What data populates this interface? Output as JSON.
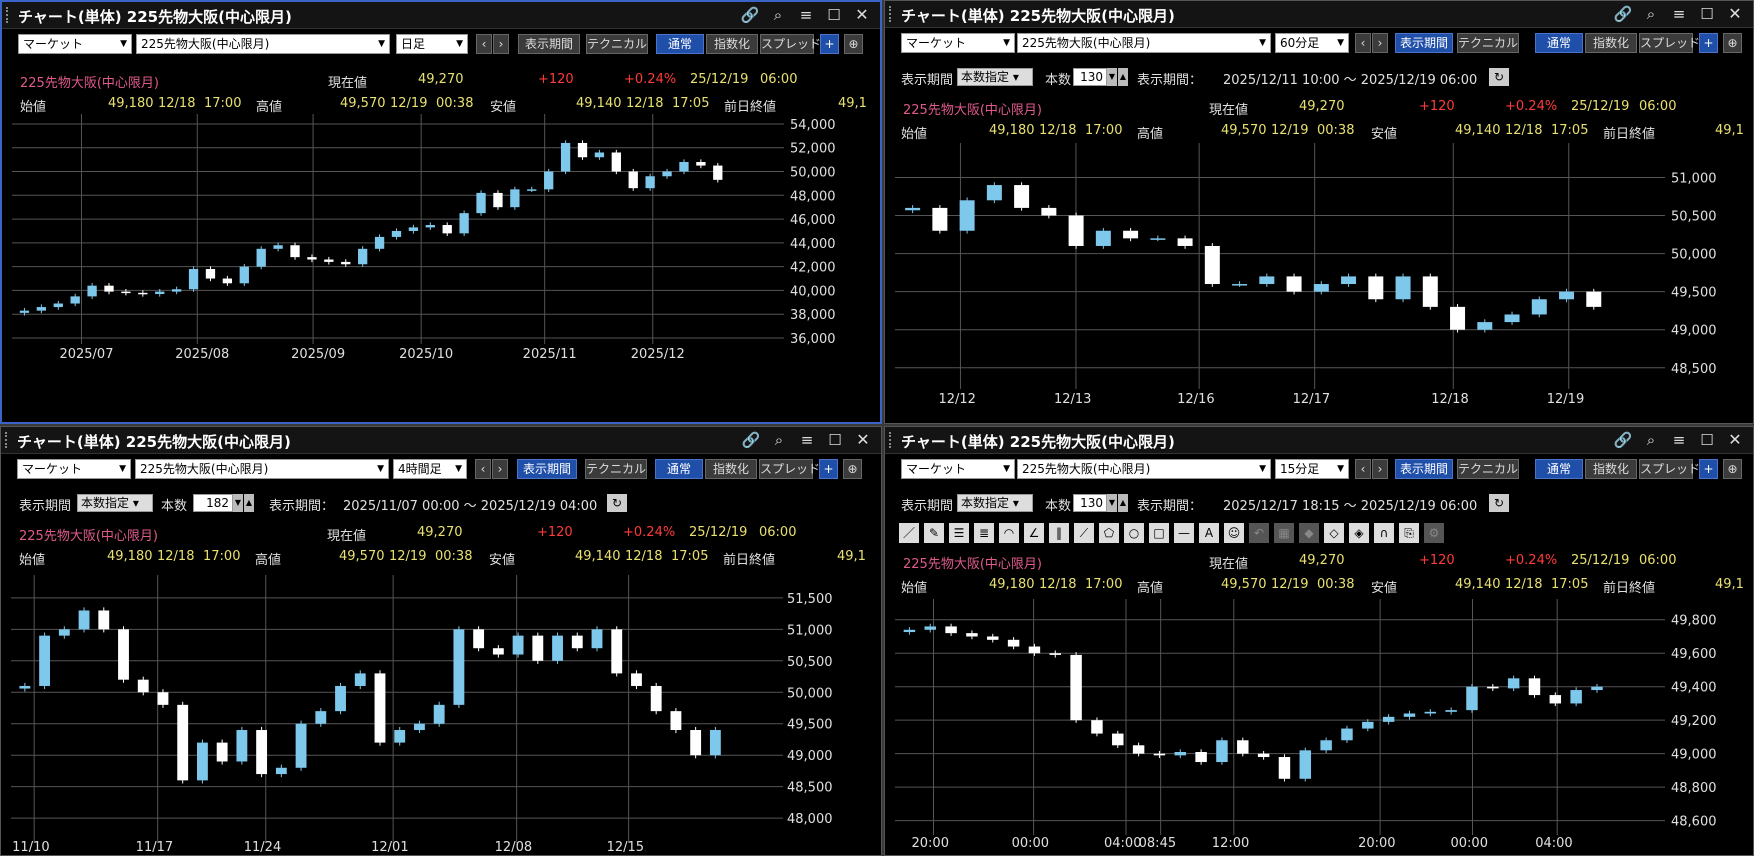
{
  "colors": {
    "up": "#7ec8ec",
    "down": "#ffffff",
    "grid": "#555",
    "price_line": "#d4a090",
    "background": "#000000",
    "name": "#e05a8c",
    "value": "#e8e070",
    "change": "#ff3a3a"
  },
  "icons": [
    "link-icon",
    "search-icon",
    "menu-icon",
    "maximize-icon",
    "close-icon",
    "plus-icon",
    "zoom-icon",
    "refresh-icon"
  ],
  "common": {
    "title": "チャート(単体) 225先物大阪(中心限月)",
    "market": "マーケット",
    "symbol": "225先物大阪(中心限月)",
    "technical": "テクニカル",
    "normal": "通常",
    "index": "指数化",
    "spread": "スプレッド",
    "display_period": "表示期間",
    "count_mode": "本数指定",
    "count_label": "本数",
    "period_label": "表示期間：",
    "name": "225先物大阪(中心限月)",
    "now_label": "現在値",
    "now_value": "49,270",
    "change": "+120",
    "change_pct": "+0.24%",
    "now_date": "25/12/19",
    "now_time": "06:00",
    "open_label": "始値",
    "open_value": "49,180",
    "open_date": "12/18",
    "open_time": "17:00",
    "high_label": "高値",
    "high_value": "49,570",
    "high_date": "12/19",
    "high_time": "00:38",
    "low_label": "安値",
    "low_value": "49,140",
    "low_date": "12/18",
    "low_time": "17:05",
    "prev_close_label": "前日終値",
    "prev_close_value": "49,1",
    "prev": "‹",
    "next": "›"
  },
  "panels": [
    {
      "timeframe": "日足",
      "yticks": [
        "54,000",
        "52,000",
        "50,000",
        "48,000",
        "46,000",
        "44,000",
        "42,000",
        "40,000",
        "38,000",
        "36,000"
      ],
      "xticks": [
        "2025/07",
        "2025/08",
        "2025/09",
        "2025/10",
        "2025/11",
        "2025/12"
      ]
    },
    {
      "timeframe": "60分足",
      "count": "130",
      "period": "2025/12/11 10:00 ～ 2025/12/19 06:00",
      "yticks": [
        "51,000",
        "50,500",
        "50,000",
        "49,500",
        "49,000",
        "48,500"
      ],
      "xticks": [
        "12/12",
        "12/13",
        "12/16",
        "12/17",
        "12/18",
        "12/19"
      ]
    },
    {
      "timeframe": "4時間足",
      "count": "182",
      "period": "2025/11/07 00:00 ～ 2025/12/19 04:00",
      "yticks": [
        "51,500",
        "51,000",
        "50,500",
        "50,000",
        "49,500",
        "49,000",
        "48,500",
        "48,000"
      ],
      "xticks": [
        "11/10",
        "11/17",
        "11/24",
        "12/01",
        "12/08",
        "12/15"
      ]
    },
    {
      "timeframe": "15分足",
      "count": "130",
      "period": "2025/12/17 18:15 ～ 2025/12/19 06:00",
      "yticks": [
        "49,800",
        "49,600",
        "49,400",
        "49,200",
        "49,000",
        "48,800",
        "48,600"
      ],
      "xticks": [
        "20:00",
        "00:00",
        "04:00",
        "08:45",
        "12:00",
        "20:00",
        "00:00",
        "04:00"
      ]
    }
  ],
  "chart_data": [
    {
      "type": "candlestick",
      "timeframe": "日足",
      "ylim": [
        36000,
        54500
      ],
      "series": [
        38300,
        38600,
        38900,
        39500,
        40400,
        39900,
        39800,
        39700,
        39900,
        40100,
        41800,
        41000,
        40600,
        42000,
        43500,
        43800,
        42800,
        42600,
        42400,
        42200,
        43500,
        44500,
        45000,
        45300,
        45500,
        44800,
        46500,
        48200,
        47000,
        48500,
        48500,
        50000,
        52400,
        51200,
        51600,
        50000,
        48600,
        49600,
        50000,
        50800,
        50500,
        49300
      ],
      "xticks": [
        "2025/07",
        "2025/08",
        "2025/09",
        "2025/10",
        "2025/11",
        "2025/12"
      ]
    },
    {
      "type": "candlestick",
      "timeframe": "60分足",
      "ylim": [
        48300,
        51400
      ],
      "series": [
        50600,
        50300,
        50700,
        50900,
        50600,
        50500,
        50100,
        50300,
        50200,
        50200,
        50100,
        49600,
        49600,
        49700,
        49500,
        49600,
        49700,
        49400,
        49700,
        49300,
        49000,
        49100,
        49200,
        49400,
        49500,
        49300
      ],
      "xticks": [
        "12/12",
        "12/13",
        "12/16",
        "12/17",
        "12/18",
        "12/19"
      ]
    },
    {
      "type": "candlestick",
      "timeframe": "4時間足",
      "ylim": [
        47700,
        51800
      ],
      "series": [
        50100,
        50900,
        51000,
        51300,
        51000,
        50200,
        50000,
        49800,
        48600,
        49200,
        48900,
        49400,
        48700,
        48800,
        49500,
        49700,
        50100,
        50300,
        49200,
        49400,
        49500,
        49800,
        51000,
        50700,
        50600,
        50900,
        50500,
        50900,
        50700,
        51000,
        50300,
        50100,
        49700,
        49400,
        49000,
        49400
      ],
      "xticks": [
        "11/10",
        "11/17",
        "11/24",
        "12/01",
        "12/08",
        "12/15"
      ]
    },
    {
      "type": "candlestick",
      "timeframe": "15分足",
      "ylim": [
        48550,
        49900
      ],
      "series": [
        49740,
        49760,
        49720,
        49700,
        49680,
        49640,
        49600,
        49590,
        49200,
        49120,
        49050,
        49000,
        48990,
        49010,
        48950,
        49080,
        49000,
        48980,
        48850,
        49020,
        49080,
        49150,
        49190,
        49220,
        49240,
        49250,
        49260,
        49400,
        49390,
        49450,
        49350,
        49300,
        49380,
        49400
      ],
      "xticks": [
        "20:00",
        "00:00",
        "04:00",
        "08:45",
        "12:00",
        "20:00",
        "00:00",
        "04:00"
      ]
    }
  ]
}
